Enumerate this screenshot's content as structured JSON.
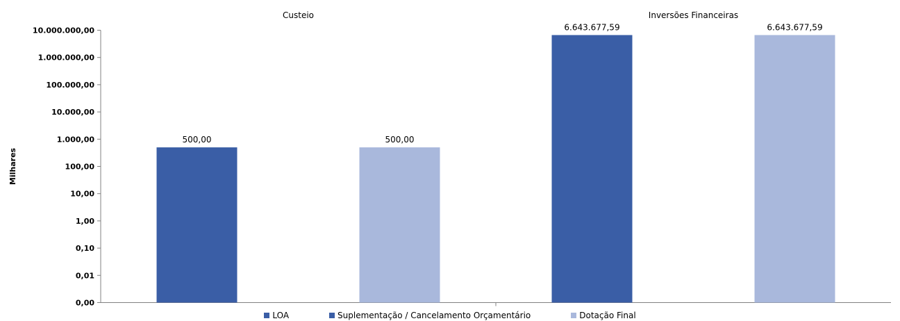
{
  "chart_data": {
    "type": "bar",
    "title": "",
    "xlabel": "",
    "ylabel": "Milhares",
    "yscale": "log",
    "ylim": [
      0.001,
      10000000
    ],
    "yticks": [
      0.001,
      0.01,
      0.1,
      1,
      10,
      100,
      1000,
      10000,
      100000,
      1000000,
      10000000
    ],
    "ytick_labels": [
      "0,00",
      "0,01",
      "0,10",
      "1,00",
      "10,00",
      "100,00",
      "1.000,00",
      "10.000,00",
      "100.000,00",
      "1.000.000,00",
      "10.000.000,00"
    ],
    "categories": [
      "Custeio",
      "Inversões Financeiras"
    ],
    "series": [
      {
        "name": "LOA",
        "color": "#3a5ea6",
        "values": [
          500,
          6643677.59
        ],
        "labels": [
          "500,00",
          "6.643.677,59"
        ]
      },
      {
        "name": "Suplementação / Cancelamento Orçamentário",
        "color": "#3a5ea6",
        "values": [
          0,
          0
        ],
        "labels": [
          "",
          ""
        ]
      },
      {
        "name": "Dotação Final",
        "color": "#a9b8dc",
        "values": [
          500,
          6643677.59
        ],
        "labels": [
          "500,00",
          "6.643.677,59"
        ]
      }
    ],
    "legend_position": "bottom",
    "grid": false
  }
}
